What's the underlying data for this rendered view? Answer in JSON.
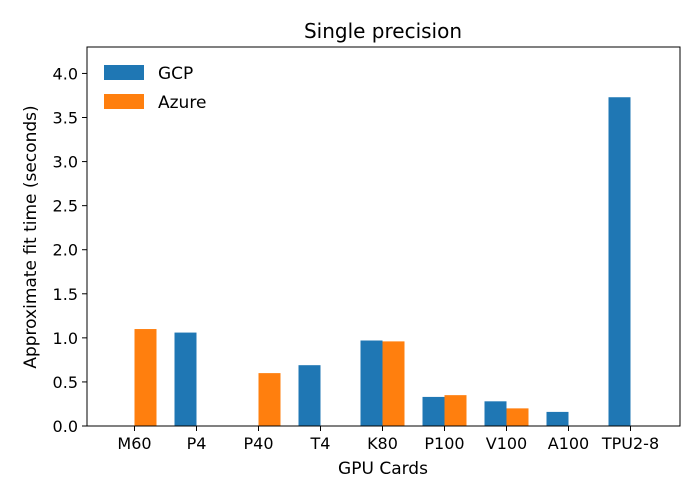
{
  "chart_data": {
    "type": "bar",
    "title": "Single precision",
    "xlabel": "GPU Cards",
    "ylabel": "Approximate fit time (seconds)",
    "categories": [
      "M60",
      "P4",
      "P40",
      "T4",
      "K80",
      "P100",
      "V100",
      "A100",
      "TPU2-8"
    ],
    "series": [
      {
        "name": "GCP",
        "color": "#1f77b4",
        "values": [
          null,
          1.06,
          null,
          0.69,
          0.97,
          0.33,
          0.28,
          0.16,
          3.73
        ]
      },
      {
        "name": "Azure",
        "color": "#ff7f0e",
        "values": [
          1.1,
          null,
          0.6,
          null,
          0.96,
          0.35,
          0.2,
          null,
          null
        ]
      }
    ],
    "ylim": [
      0,
      4.3
    ],
    "yticks": [
      0.0,
      0.5,
      1.0,
      1.5,
      2.0,
      2.5,
      3.0,
      3.5,
      4.0
    ],
    "ytick_labels": [
      "0.0",
      "0.5",
      "1.0",
      "1.5",
      "2.0",
      "2.5",
      "3.0",
      "3.5",
      "4.0"
    ],
    "grid": false,
    "legend_position": "upper-left"
  }
}
